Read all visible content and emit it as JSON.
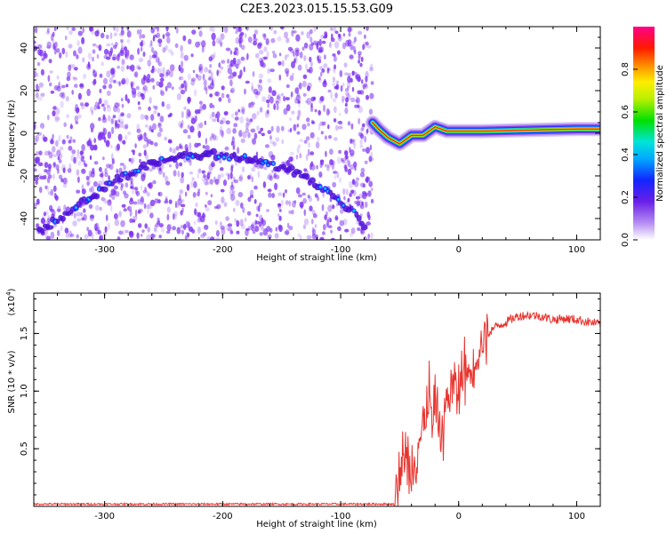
{
  "figure": {
    "title": "C2E3.2023.015.15.53.G09"
  },
  "chart_data": [
    {
      "type": "heatmap",
      "xlabel": "Height of straight line (km)",
      "ylabel": "Frequency (Hz)",
      "xlim": [
        -360,
        120
      ],
      "ylim": [
        -50,
        50
      ],
      "xticks": [
        -300,
        -200,
        -100,
        0,
        100
      ],
      "yticks": [
        -40,
        -20,
        0,
        20,
        40
      ],
      "colorbar": {
        "label": "Normalized spectral amplitude",
        "range": [
          0.0,
          1.0
        ],
        "ticks": [
          "0.0",
          "0.2",
          "0.4",
          "0.6",
          "0.8"
        ],
        "colormap": "rainbow: white-purple-blue-cyan-green-yellow-red-pink"
      },
      "noise_region_x": [
        -360,
        -73
      ],
      "noise_color": "#7b2ff0",
      "signal_ridge": [
        {
          "x": -355,
          "y": -46
        },
        {
          "x": -320,
          "y": -33
        },
        {
          "x": -290,
          "y": -22
        },
        {
          "x": -260,
          "y": -14
        },
        {
          "x": -230,
          "y": -10
        },
        {
          "x": -200,
          "y": -10
        },
        {
          "x": -170,
          "y": -13
        },
        {
          "x": -140,
          "y": -18
        },
        {
          "x": -110,
          "y": -28
        },
        {
          "x": -90,
          "y": -37
        },
        {
          "x": -78,
          "y": -44
        }
      ],
      "signal_band": [
        {
          "x": -73,
          "y": 5
        },
        {
          "x": -68,
          "y": 2
        },
        {
          "x": -60,
          "y": -2
        },
        {
          "x": -50,
          "y": -5
        },
        {
          "x": -40,
          "y": -1
        },
        {
          "x": -30,
          "y": -1
        },
        {
          "x": -20,
          "y": 3
        },
        {
          "x": -10,
          "y": 1
        },
        {
          "x": 0,
          "y": 1
        },
        {
          "x": 20,
          "y": 1
        },
        {
          "x": 60,
          "y": 1.5
        },
        {
          "x": 100,
          "y": 2
        },
        {
          "x": 120,
          "y": 2
        }
      ]
    },
    {
      "type": "line",
      "xlabel": "Height of straight line (km)",
      "ylabel": "SNR (10 * v/v)",
      "scale_label": "(x10",
      "scale_exponent": "4",
      "scale_suffix": ")",
      "xlim": [
        -360,
        120
      ],
      "ylim": [
        0,
        1.85
      ],
      "xticks": [
        -300,
        -200,
        -100,
        0,
        100
      ],
      "yticks": [
        0.5,
        1.0,
        1.5
      ],
      "ytick_labels": [
        "0.5",
        "1.0",
        "1.5"
      ],
      "color": "#e8342e",
      "series": [
        {
          "x": [
            -360,
            -100,
            -55,
            -50,
            -45,
            -40,
            -35,
            -30,
            -25,
            -22,
            -18,
            -15,
            -10,
            -5,
            0,
            5,
            10,
            15,
            20,
            30,
            40,
            50,
            60,
            70,
            80,
            90,
            100,
            110,
            120
          ],
          "values": [
            0.02,
            0.02,
            0.02,
            0.25,
            0.45,
            0.32,
            0.55,
            0.65,
            0.95,
            0.7,
            0.9,
            0.6,
            0.95,
            1.05,
            1.0,
            1.2,
            1.15,
            1.35,
            1.45,
            1.55,
            1.6,
            1.65,
            1.66,
            1.65,
            1.62,
            1.63,
            1.62,
            1.6,
            1.58
          ]
        }
      ]
    }
  ]
}
